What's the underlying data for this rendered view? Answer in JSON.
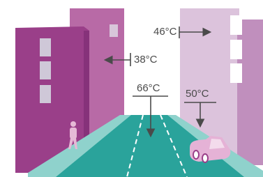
{
  "labels": {
    "right_building": "46°C",
    "left_building": "38°C",
    "road": "66°C",
    "sidewalk": "50°C"
  }
}
